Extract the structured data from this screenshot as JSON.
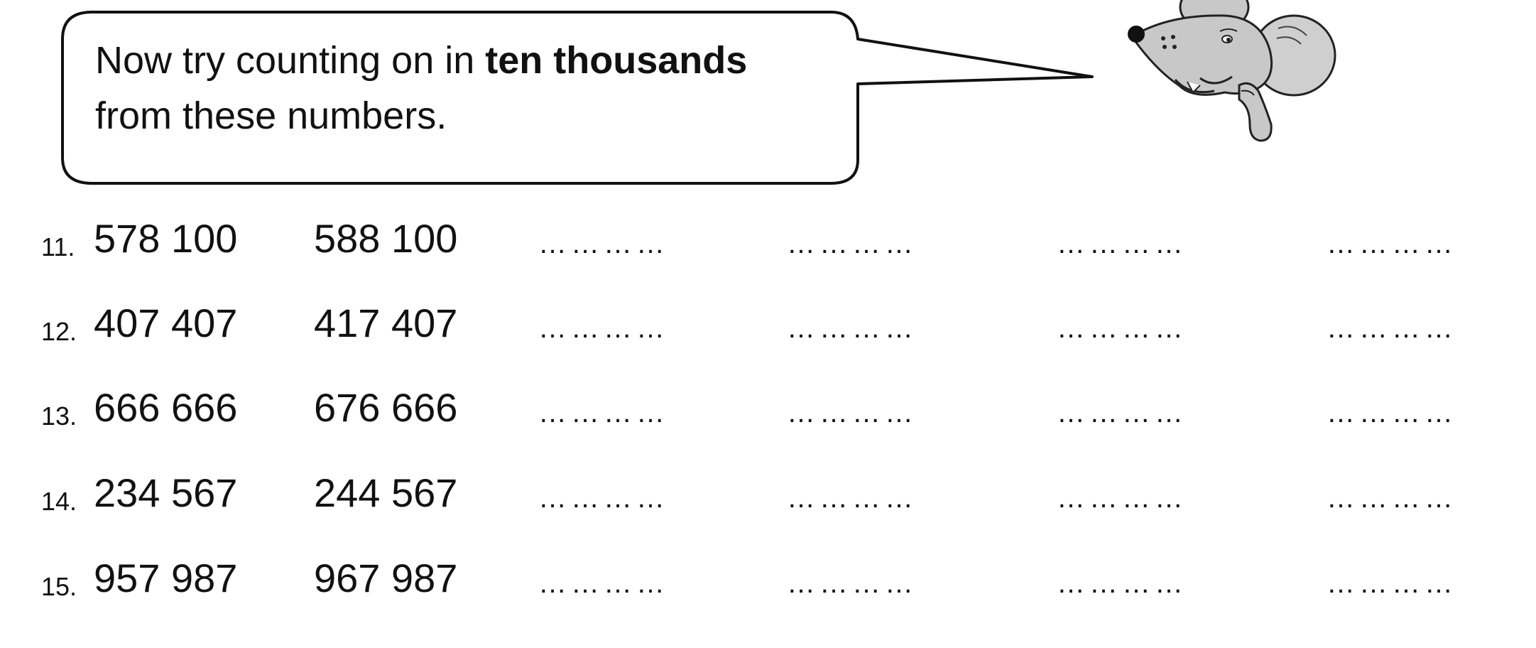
{
  "instruction": {
    "text_start": "Now try counting on in ",
    "text_bold": "ten thousands",
    "text_end": "from these numbers."
  },
  "blank_marker": "…………",
  "rows": [
    {
      "label": "11.",
      "first": "578 100",
      "second": "588 100"
    },
    {
      "label": "12.",
      "first": "407 407",
      "second": "417 407"
    },
    {
      "label": "13.",
      "first": "666 666",
      "second": "676 666"
    },
    {
      "label": "14.",
      "first": "234 567",
      "second": "244 567"
    },
    {
      "label": "15.",
      "first": "957 987",
      "second": "967 987"
    }
  ]
}
